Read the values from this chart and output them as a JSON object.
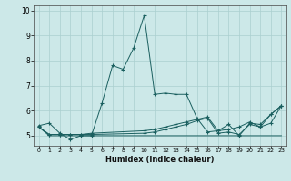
{
  "xlabel": "Humidex (Indice chaleur)",
  "background_color": "#cce8e8",
  "grid_color": "#aacfcf",
  "line_color": "#1a5f5f",
  "xlim": [
    -0.5,
    23.5
  ],
  "ylim": [
    4.6,
    10.2
  ],
  "xticks": [
    0,
    1,
    2,
    3,
    4,
    5,
    6,
    7,
    8,
    9,
    10,
    11,
    12,
    13,
    14,
    15,
    16,
    17,
    18,
    19,
    20,
    21,
    22,
    23
  ],
  "yticks": [
    5,
    6,
    7,
    8,
    9,
    10
  ],
  "series": [
    {
      "x": [
        0,
        1,
        2,
        3,
        4,
        5,
        6,
        7,
        8,
        9,
        10,
        11,
        12,
        13,
        14,
        15,
        16,
        17,
        18,
        19,
        20,
        21,
        22,
        23
      ],
      "y": [
        5.4,
        5.5,
        5.1,
        4.85,
        5.0,
        5.0,
        6.3,
        7.8,
        7.65,
        8.5,
        9.8,
        6.65,
        6.7,
        6.65,
        6.65,
        5.7,
        5.15,
        5.2,
        5.45,
        5.0,
        5.5,
        5.45,
        5.85,
        6.2
      ],
      "marker": true
    },
    {
      "x": [
        0,
        1,
        2,
        3,
        4,
        5,
        6,
        7,
        8,
        9,
        10,
        11,
        12,
        13,
        14,
        15,
        16,
        17,
        18,
        19,
        20,
        21,
        22,
        23
      ],
      "y": [
        5.35,
        5.0,
        5.0,
        5.0,
        5.0,
        5.0,
        5.0,
        5.0,
        5.0,
        5.0,
        5.0,
        5.0,
        5.0,
        5.0,
        5.0,
        5.0,
        5.0,
        5.0,
        5.0,
        5.0,
        5.0,
        5.0,
        5.0,
        5.0
      ],
      "marker": false
    },
    {
      "x": [
        0,
        1,
        2,
        3,
        4,
        5,
        10,
        11,
        12,
        13,
        14,
        15,
        16,
        17,
        18,
        19,
        20,
        21,
        22,
        23
      ],
      "y": [
        5.35,
        5.05,
        5.05,
        5.05,
        5.05,
        5.1,
        5.2,
        5.25,
        5.35,
        5.45,
        5.55,
        5.65,
        5.75,
        5.2,
        5.25,
        5.35,
        5.55,
        5.35,
        5.85,
        6.2
      ],
      "marker": true
    },
    {
      "x": [
        0,
        1,
        2,
        3,
        4,
        5,
        10,
        11,
        12,
        13,
        14,
        15,
        16,
        17,
        18,
        19,
        20,
        21,
        22,
        23
      ],
      "y": [
        5.35,
        5.05,
        5.05,
        5.05,
        5.05,
        5.05,
        5.1,
        5.15,
        5.25,
        5.35,
        5.45,
        5.6,
        5.7,
        5.1,
        5.15,
        5.05,
        5.45,
        5.35,
        5.5,
        6.2
      ],
      "marker": true
    }
  ]
}
